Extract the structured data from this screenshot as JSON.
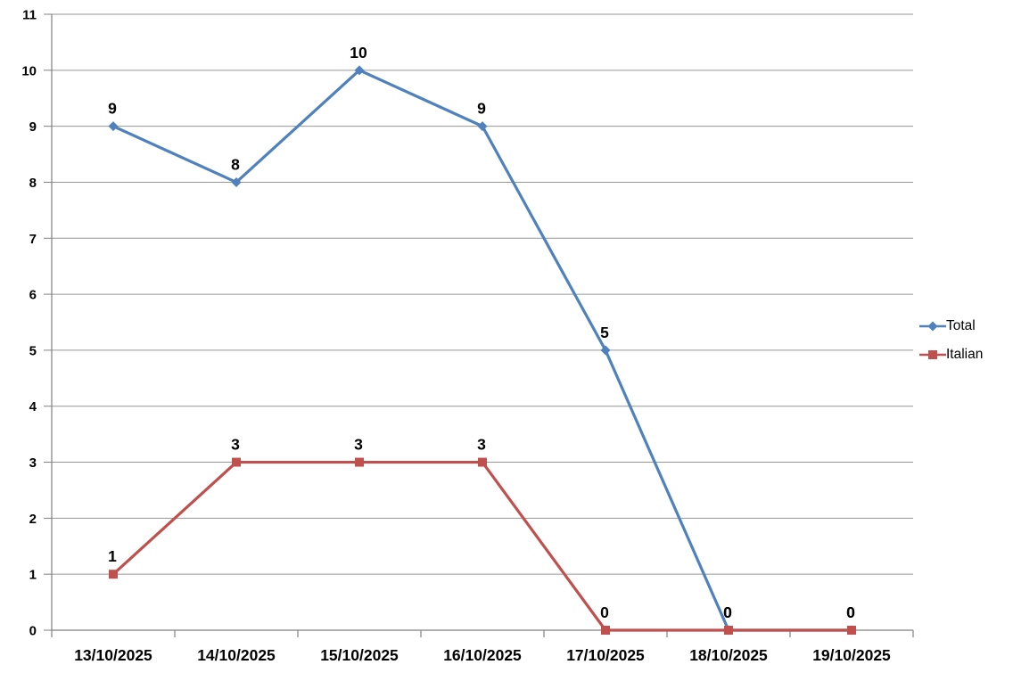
{
  "chart_data": {
    "type": "line",
    "title": "",
    "xlabel": "",
    "ylabel": "",
    "categories": [
      "13/10/2025",
      "14/10/2025",
      "15/10/2025",
      "16/10/2025",
      "17/10/2025",
      "18/10/2025",
      "19/10/2025"
    ],
    "series": [
      {
        "name": "Total",
        "values": [
          9,
          8,
          10,
          9,
          5,
          0,
          0
        ],
        "color": "#4F81BD",
        "marker": "diamond"
      },
      {
        "name": "Italian",
        "values": [
          1,
          3,
          3,
          3,
          0,
          0,
          0
        ],
        "color": "#C0504D",
        "marker": "square"
      }
    ],
    "ylim": [
      0,
      11
    ],
    "yticks": [
      0,
      1,
      2,
      3,
      4,
      5,
      6,
      7,
      8,
      9,
      10,
      11
    ],
    "grid": true,
    "data_labels": true,
    "legend_position": "right"
  },
  "style": {
    "gridline_color": "#969696",
    "axis_color": "#808080",
    "text_color": "#000000",
    "background": "#FFFFFF",
    "line_width": 3.2
  }
}
